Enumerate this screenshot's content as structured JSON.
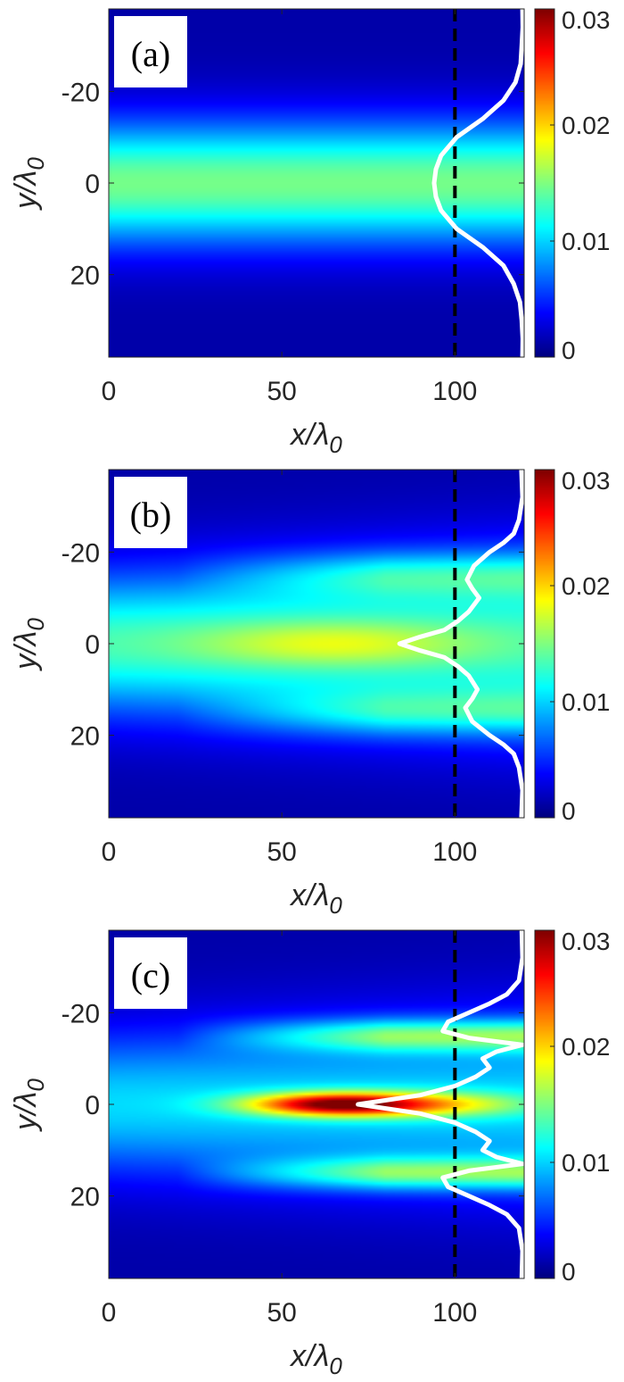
{
  "chart_data": [
    {
      "type": "heatmap",
      "panel_label": "(a)",
      "xlabel": "x/λ0",
      "ylabel": "y/λ0",
      "xlim": [
        0,
        120
      ],
      "ylim": [
        -38,
        38
      ],
      "y_reversed": true,
      "xticks": [
        {
          "value": 0,
          "label": "0"
        },
        {
          "value": 50,
          "label": "50"
        },
        {
          "value": 100,
          "label": "100"
        }
      ],
      "yticks": [
        {
          "value": -20,
          "label": "-20"
        },
        {
          "value": 0,
          "label": "0"
        },
        {
          "value": 20,
          "label": "20"
        }
      ],
      "colorbar": {
        "min": 0,
        "max": 0.03,
        "ticks": [
          {
            "value": 0,
            "label": "0"
          },
          {
            "value": 0.01,
            "label": "0.01"
          },
          {
            "value": 0.02,
            "label": "0.02"
          },
          {
            "value": 0.03,
            "label": "0.03"
          }
        ],
        "colormap": "jet"
      },
      "beam": {
        "peak": 0.0135,
        "width": 9.5,
        "width_growth": 0.0,
        "focus": []
      },
      "dashed_line_x": 100,
      "profile_line": {
        "color": "#ffffff",
        "x_at_baseline": 120,
        "x_at_peak": 94,
        "points": [
          [
            -38,
            119.5
          ],
          [
            -34,
            119.6
          ],
          [
            -30,
            119.3
          ],
          [
            -26,
            119
          ],
          [
            -22,
            117.5
          ],
          [
            -18,
            114
          ],
          [
            -14,
            108
          ],
          [
            -10,
            100.5
          ],
          [
            -6,
            96
          ],
          [
            -3,
            94.5
          ],
          [
            0,
            94
          ],
          [
            3,
            94.5
          ],
          [
            6,
            96
          ],
          [
            10,
            100.5
          ],
          [
            14,
            108
          ],
          [
            18,
            114
          ],
          [
            22,
            117
          ],
          [
            26,
            118.8
          ],
          [
            30,
            119.3
          ],
          [
            34,
            119.6
          ],
          [
            38,
            119.5
          ]
        ]
      }
    },
    {
      "type": "heatmap",
      "panel_label": "(b)",
      "xlabel": "x/λ0",
      "ylabel": "y/λ0",
      "xlim": [
        0,
        120
      ],
      "ylim": [
        -38,
        38
      ],
      "y_reversed": true,
      "xticks": [
        {
          "value": 0,
          "label": "0"
        },
        {
          "value": 50,
          "label": "50"
        },
        {
          "value": 100,
          "label": "100"
        }
      ],
      "yticks": [
        {
          "value": -20,
          "label": "-20"
        },
        {
          "value": 0,
          "label": "0"
        },
        {
          "value": 20,
          "label": "20"
        }
      ],
      "colorbar": {
        "min": 0,
        "max": 0.03,
        "ticks": [
          {
            "value": 0,
            "label": "0"
          },
          {
            "value": 0.01,
            "label": "0.01"
          },
          {
            "value": 0.02,
            "label": "0.02"
          },
          {
            "value": 0.03,
            "label": "0.03"
          }
        ],
        "colormap": "jet"
      },
      "beam": {
        "peak": 0.012,
        "width": 11,
        "width_growth": 0.02,
        "focus": [
          {
            "x0": 65,
            "sx": 28,
            "peak": 0.005,
            "sy": 3.5
          }
        ],
        "side_lobes": [
          {
            "y": -15,
            "peak": 0.006,
            "sy": 3.5
          },
          {
            "y": 15,
            "peak": 0.006,
            "sy": 3.5
          }
        ]
      },
      "dashed_line_x": 100,
      "profile_line": {
        "color": "#ffffff",
        "x_at_baseline": 120,
        "x_at_peak": 84,
        "points": [
          [
            -38,
            119.2
          ],
          [
            -32,
            119.5
          ],
          [
            -27,
            118.5
          ],
          [
            -24,
            117
          ],
          [
            -22,
            114
          ],
          [
            -20,
            110
          ],
          [
            -17,
            105.5
          ],
          [
            -14,
            103.5
          ],
          [
            -12,
            105
          ],
          [
            -10,
            107
          ],
          [
            -7,
            104
          ],
          [
            -5,
            101
          ],
          [
            -3,
            97
          ],
          [
            -1.5,
            90
          ],
          [
            0,
            84
          ],
          [
            1.5,
            90
          ],
          [
            3,
            97
          ],
          [
            5,
            101
          ],
          [
            7,
            104
          ],
          [
            10,
            106.5
          ],
          [
            12,
            105
          ],
          [
            14,
            103
          ],
          [
            17,
            105
          ],
          [
            20,
            110
          ],
          [
            22,
            114
          ],
          [
            24,
            117
          ],
          [
            27,
            118.5
          ],
          [
            32,
            119.5
          ],
          [
            38,
            119.2
          ]
        ]
      }
    },
    {
      "type": "heatmap",
      "panel_label": "(c)",
      "xlabel": "x/λ0",
      "ylabel": "y/λ0",
      "xlim": [
        0,
        120
      ],
      "ylim": [
        -38,
        38
      ],
      "y_reversed": true,
      "xticks": [
        {
          "value": 0,
          "label": "0"
        },
        {
          "value": 50,
          "label": "50"
        },
        {
          "value": 100,
          "label": "100"
        }
      ],
      "yticks": [
        {
          "value": -20,
          "label": "-20"
        },
        {
          "value": 0,
          "label": "0"
        },
        {
          "value": 20,
          "label": "20"
        }
      ],
      "colorbar": {
        "min": 0,
        "max": 0.03,
        "ticks": [
          {
            "value": 0,
            "label": "0"
          },
          {
            "value": 0.01,
            "label": "0.01"
          },
          {
            "value": 0.02,
            "label": "0.02"
          },
          {
            "value": 0.03,
            "label": "0.03"
          }
        ],
        "colormap": "jet"
      },
      "beam": {
        "peak": 0.009,
        "width": 11,
        "width_growth": 0.02,
        "focus": [
          {
            "x0": 65,
            "sx": 18,
            "peak": 0.019,
            "sy": 1.8
          },
          {
            "x0": 95,
            "sx": 20,
            "peak": 0.008,
            "sy": 2
          }
        ],
        "side_lobes": [
          {
            "y": -15,
            "peak": 0.01,
            "sy": 2.5
          },
          {
            "y": 15,
            "peak": 0.01,
            "sy": 2.5
          }
        ]
      },
      "dashed_line_x": 100,
      "profile_line": {
        "color": "#ffffff",
        "x_at_baseline": 120,
        "x_at_peak": 72,
        "points": [
          [
            -38,
            119.3
          ],
          [
            -32,
            119.5
          ],
          [
            -27,
            118.5
          ],
          [
            -24,
            115
          ],
          [
            -22,
            110
          ],
          [
            -20,
            104
          ],
          [
            -18,
            98
          ],
          [
            -16,
            96.5
          ],
          [
            -14.5,
            104
          ],
          [
            -13,
            119.5
          ],
          [
            -11.5,
            112
          ],
          [
            -10,
            108
          ],
          [
            -8,
            110
          ],
          [
            -6,
            106
          ],
          [
            -4,
            100
          ],
          [
            -2,
            90
          ],
          [
            0,
            72
          ],
          [
            2,
            90
          ],
          [
            4,
            100
          ],
          [
            6,
            106
          ],
          [
            8,
            110
          ],
          [
            10,
            108
          ],
          [
            11.5,
            112
          ],
          [
            13,
            119.5
          ],
          [
            14.5,
            104
          ],
          [
            16,
            96.5
          ],
          [
            18,
            98
          ],
          [
            20,
            104
          ],
          [
            22,
            110
          ],
          [
            24,
            115
          ],
          [
            27,
            118.5
          ],
          [
            32,
            119.5
          ],
          [
            38,
            119.3
          ]
        ]
      }
    }
  ]
}
